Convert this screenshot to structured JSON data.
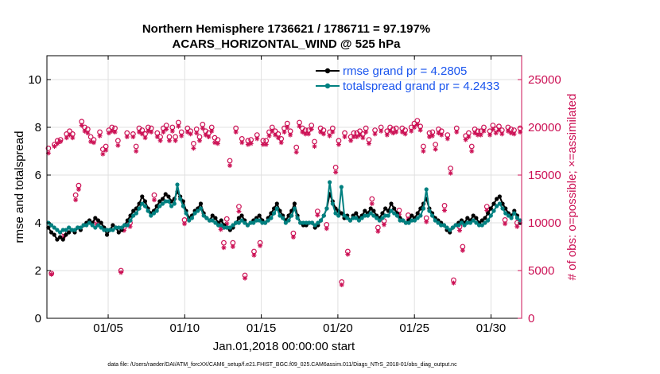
{
  "chart_data": {
    "type": "line",
    "title_line1": "Northern Hemisphere 1736621 / 1786711 = 97.197%",
    "title_line2": "ACARS_HORIZONTAL_WIND @ 525 hPa",
    "xlabel": "Jan.01,2018 00:00:00 start",
    "ylabel_left": "rmse and totalspread",
    "ylabel_right": "# of obs: o=possible; ×=assimilated",
    "xlim": [
      1,
      32
    ],
    "ylim_left": [
      0,
      11
    ],
    "ylim_right": [
      0,
      27500
    ],
    "xticks": [
      5,
      10,
      15,
      20,
      25,
      30
    ],
    "xtick_labels": [
      "01/05",
      "01/10",
      "01/15",
      "01/20",
      "01/25",
      "01/30"
    ],
    "yticks_left": [
      0,
      2,
      4,
      6,
      8,
      10
    ],
    "yticks_left_labels": [
      "0",
      "2",
      "4",
      "6",
      "8",
      "10"
    ],
    "yticks_right": [
      0,
      5000,
      10000,
      15000,
      20000,
      25000
    ],
    "yticks_right_labels": [
      "0",
      "5000",
      "10000",
      "15000",
      "20000",
      "25000"
    ],
    "grid": true,
    "legend_location": "top-right",
    "footer": "data file: /Users/raeder/DAI/ATM_forcXX/CAM6_setup/f.e21.FHIST_BGC.f09_025.CAM6assim.011/Diags_NTrS_2018-01/obs_diag_output.nc",
    "colors": {
      "rmse": "#000000",
      "spread": "#008080",
      "obs": "#cc1155",
      "legend_text": "#1a55ee"
    },
    "series": [
      {
        "name": "rmse grand pr = 4.2805",
        "axis": "left",
        "values": [
          3.8,
          3.6,
          3.5,
          3.3,
          3.4,
          3.3,
          3.5,
          3.6,
          3.7,
          3.6,
          3.8,
          3.7,
          3.9,
          4.0,
          4.1,
          4.0,
          4.2,
          4.1,
          4.0,
          3.8,
          3.5,
          3.7,
          3.9,
          3.8,
          3.6,
          3.7,
          3.9,
          4.1,
          4.3,
          4.5,
          4.6,
          4.8,
          5.1,
          4.9,
          4.6,
          4.4,
          4.5,
          4.7,
          4.9,
          5.0,
          5.2,
          5.1,
          4.9,
          5.0,
          5.3,
          5.1,
          4.9,
          4.5,
          4.2,
          4.3,
          4.5,
          4.6,
          4.8,
          4.4,
          4.2,
          4.1,
          4.3,
          4.2,
          4.0,
          4.1,
          3.9,
          3.8,
          3.7,
          3.8,
          4.0,
          4.2,
          4.3,
          4.1,
          3.9,
          4.0,
          4.1,
          4.2,
          4.3,
          4.1,
          4.0,
          4.2,
          4.4,
          4.6,
          4.8,
          4.5,
          4.3,
          4.1,
          4.3,
          4.5,
          4.8,
          4.3,
          4.0,
          3.9,
          3.9,
          4.0,
          4.0,
          3.8,
          3.9,
          4.1,
          4.3,
          4.6,
          5.2,
          4.9,
          4.6,
          4.5,
          4.4,
          4.2,
          4.3,
          4.1,
          4.3,
          4.4,
          4.2,
          4.3,
          4.5,
          4.4,
          4.6,
          4.5,
          4.3,
          4.2,
          4.4,
          4.6,
          4.5,
          4.8,
          4.6,
          4.4,
          4.2,
          4.1,
          4.0,
          4.1,
          4.3,
          4.2,
          4.4,
          4.6,
          4.8,
          5.0,
          4.6,
          4.4,
          4.2,
          4.1,
          4.0,
          3.9,
          3.7,
          3.6,
          3.8,
          3.9,
          4.0,
          4.1,
          4.0,
          4.2,
          4.1,
          4.3,
          4.2,
          4.0,
          4.1,
          4.2,
          4.4,
          4.6,
          4.8,
          5.0,
          5.1,
          4.8,
          4.6,
          4.4,
          4.3,
          4.5,
          4.3,
          4.0
        ]
      },
      {
        "name": "totalspread grand pr = 4.2433",
        "axis": "left",
        "values": [
          4.0,
          3.9,
          3.8,
          3.7,
          3.6,
          3.7,
          3.7,
          3.8,
          3.7,
          3.7,
          3.8,
          3.8,
          3.9,
          3.9,
          4.0,
          3.9,
          3.8,
          3.9,
          3.8,
          3.7,
          3.7,
          3.7,
          3.7,
          3.8,
          3.8,
          3.8,
          3.9,
          3.9,
          4.1,
          4.3,
          4.4,
          4.6,
          4.8,
          4.7,
          4.5,
          4.3,
          4.4,
          4.5,
          4.7,
          4.8,
          4.9,
          4.9,
          4.7,
          4.8,
          5.6,
          5.0,
          4.7,
          4.4,
          4.1,
          4.2,
          4.4,
          4.5,
          4.6,
          4.3,
          4.2,
          4.1,
          4.1,
          4.0,
          3.9,
          3.9,
          3.8,
          3.8,
          3.8,
          3.9,
          4.0,
          4.0,
          4.1,
          4.0,
          3.9,
          4.0,
          4.0,
          4.1,
          4.1,
          4.0,
          4.0,
          4.1,
          4.2,
          4.4,
          4.6,
          4.3,
          4.2,
          4.0,
          4.1,
          4.3,
          4.6,
          4.2,
          4.0,
          4.0,
          4.0,
          4.0,
          4.0,
          3.9,
          4.0,
          4.1,
          4.3,
          4.6,
          5.7,
          4.8,
          4.4,
          4.3,
          5.5,
          4.3,
          4.2,
          4.1,
          4.2,
          4.2,
          4.1,
          4.2,
          4.3,
          4.3,
          4.4,
          4.3,
          4.2,
          4.1,
          4.2,
          4.3,
          4.3,
          4.5,
          4.4,
          4.3,
          4.1,
          4.1,
          4.0,
          4.0,
          4.1,
          4.1,
          4.2,
          4.3,
          4.6,
          5.4,
          4.5,
          4.3,
          4.1,
          4.0,
          3.9,
          3.9,
          3.8,
          3.7,
          3.8,
          3.9,
          3.9,
          4.0,
          3.9,
          4.0,
          4.0,
          4.1,
          4.0,
          3.9,
          3.9,
          4.0,
          4.1,
          4.3,
          4.5,
          4.7,
          4.8,
          4.6,
          4.4,
          4.3,
          4.2,
          4.4,
          4.2,
          4.1
        ]
      },
      {
        "name": "obs possible",
        "axis": "right",
        "values": [
          17800,
          4700,
          18200,
          18600,
          18700,
          9000,
          19300,
          19600,
          19300,
          12900,
          13900,
          20600,
          20000,
          19800,
          19000,
          18700,
          10200,
          19500,
          17700,
          18000,
          19700,
          20000,
          19900,
          18600,
          5000,
          9500,
          19400,
          10000,
          19300,
          18000,
          19900,
          19700,
          19300,
          20000,
          19900,
          12900,
          19400,
          19000,
          19900,
          20200,
          19000,
          20000,
          19000,
          20500,
          19500,
          10300,
          19900,
          19600,
          18300,
          19800,
          19000,
          20300,
          19600,
          19400,
          20000,
          18900,
          18700,
          9700,
          7900,
          10400,
          16500,
          7900,
          19900,
          11700,
          18800,
          4500,
          18600,
          18700,
          7000,
          19200,
          7900,
          18600,
          18600,
          19500,
          20000,
          19600,
          19300,
          18800,
          19900,
          20400,
          19600,
          8900,
          17900,
          20500,
          19900,
          19700,
          19700,
          20200,
          18500,
          11200,
          19900,
          19700,
          9800,
          19500,
          19900,
          15800,
          18600,
          3800,
          19400,
          7000,
          19000,
          19400,
          19400,
          19600,
          19300,
          19900,
          18700,
          12500,
          19700,
          9500,
          20000,
          10200,
          19600,
          20000,
          19800,
          19900,
          11300,
          19900,
          19700,
          10800,
          20000,
          20400,
          20700,
          20100,
          18000,
          10500,
          19400,
          19500,
          18200,
          19800,
          19600,
          11800,
          19200,
          15700,
          4000,
          19900,
          9600,
          7500,
          19100,
          19400,
          18000,
          19800,
          19600,
          19600,
          20000,
          11700,
          19600,
          20200,
          19800,
          20100,
          19700,
          10300,
          20000,
          19800,
          19700,
          10000,
          19900
        ]
      },
      {
        "name": "obs assimilated",
        "axis": "right",
        "values": [
          17300,
          4600,
          18000,
          18300,
          18500,
          8500,
          18900,
          19200,
          18900,
          12400,
          13500,
          20200,
          19600,
          19400,
          18500,
          18400,
          9800,
          19100,
          17200,
          17600,
          19400,
          19600,
          19500,
          18100,
          4800,
          9200,
          19000,
          9600,
          19000,
          17500,
          19500,
          19300,
          18900,
          19600,
          19500,
          12400,
          19000,
          18600,
          19500,
          19800,
          18600,
          19600,
          18600,
          20100,
          19100,
          9900,
          19500,
          19300,
          17800,
          19400,
          18600,
          19900,
          19200,
          19000,
          19600,
          18400,
          18300,
          9300,
          7400,
          9900,
          16000,
          7500,
          19500,
          11200,
          18400,
          4200,
          18200,
          18300,
          6600,
          18800,
          7600,
          18200,
          18200,
          19100,
          19600,
          19200,
          18900,
          18400,
          19500,
          20000,
          19200,
          8500,
          17400,
          20100,
          19500,
          19300,
          19300,
          19800,
          18000,
          10800,
          19500,
          19300,
          9400,
          19100,
          19500,
          15300,
          18200,
          3500,
          19000,
          6700,
          18600,
          19000,
          19000,
          19200,
          18900,
          19500,
          18300,
          12000,
          19300,
          9100,
          19600,
          9800,
          19200,
          19600,
          19400,
          19500,
          10900,
          19500,
          19300,
          10400,
          19600,
          20000,
          20300,
          19700,
          17500,
          10100,
          19000,
          19100,
          17700,
          19400,
          19200,
          11300,
          18800,
          15200,
          3700,
          19500,
          9200,
          7100,
          18700,
          19000,
          17500,
          19400,
          19200,
          19200,
          19600,
          11300,
          19200,
          19800,
          19400,
          19700,
          19300,
          9900,
          19600,
          19400,
          19300,
          9600,
          19500
        ]
      }
    ]
  }
}
